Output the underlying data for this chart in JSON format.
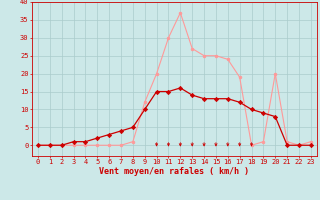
{
  "x_values": [
    0,
    1,
    2,
    3,
    4,
    5,
    6,
    7,
    8,
    9,
    10,
    11,
    12,
    13,
    14,
    15,
    16,
    17,
    18,
    19,
    20,
    21,
    22,
    23
  ],
  "rafales": [
    0,
    0,
    0,
    0,
    0,
    0,
    0,
    0,
    1,
    12,
    20,
    30,
    37,
    27,
    25,
    25,
    24,
    19,
    0,
    1,
    20,
    1,
    0,
    1
  ],
  "moyen": [
    0,
    0,
    0,
    1,
    1,
    2,
    3,
    4,
    5,
    10,
    15,
    15,
    16,
    14,
    13,
    13,
    13,
    12,
    10,
    9,
    8,
    0,
    0,
    0
  ],
  "wind_arrows_x": [
    10,
    11,
    12,
    13,
    14,
    15,
    16,
    17,
    18
  ],
  "xlabel": "Vent moyen/en rafales ( km/h )",
  "xlim": [
    -0.5,
    23.5
  ],
  "ylim": [
    -3,
    40
  ],
  "xticks": [
    0,
    1,
    2,
    3,
    4,
    5,
    6,
    7,
    8,
    9,
    10,
    11,
    12,
    13,
    14,
    15,
    16,
    17,
    18,
    19,
    20,
    21,
    22,
    23
  ],
  "yticks": [
    0,
    5,
    10,
    15,
    20,
    25,
    30,
    35,
    40
  ],
  "bg_color": "#cce8e8",
  "grid_color": "#aacccc",
  "line_color_rafales": "#ff9999",
  "line_color_moyen": "#cc0000",
  "tick_color": "#cc0000",
  "arrow_color": "#cc0000",
  "label_color": "#cc0000",
  "tick_fontsize": 5.0,
  "xlabel_fontsize": 6.0
}
